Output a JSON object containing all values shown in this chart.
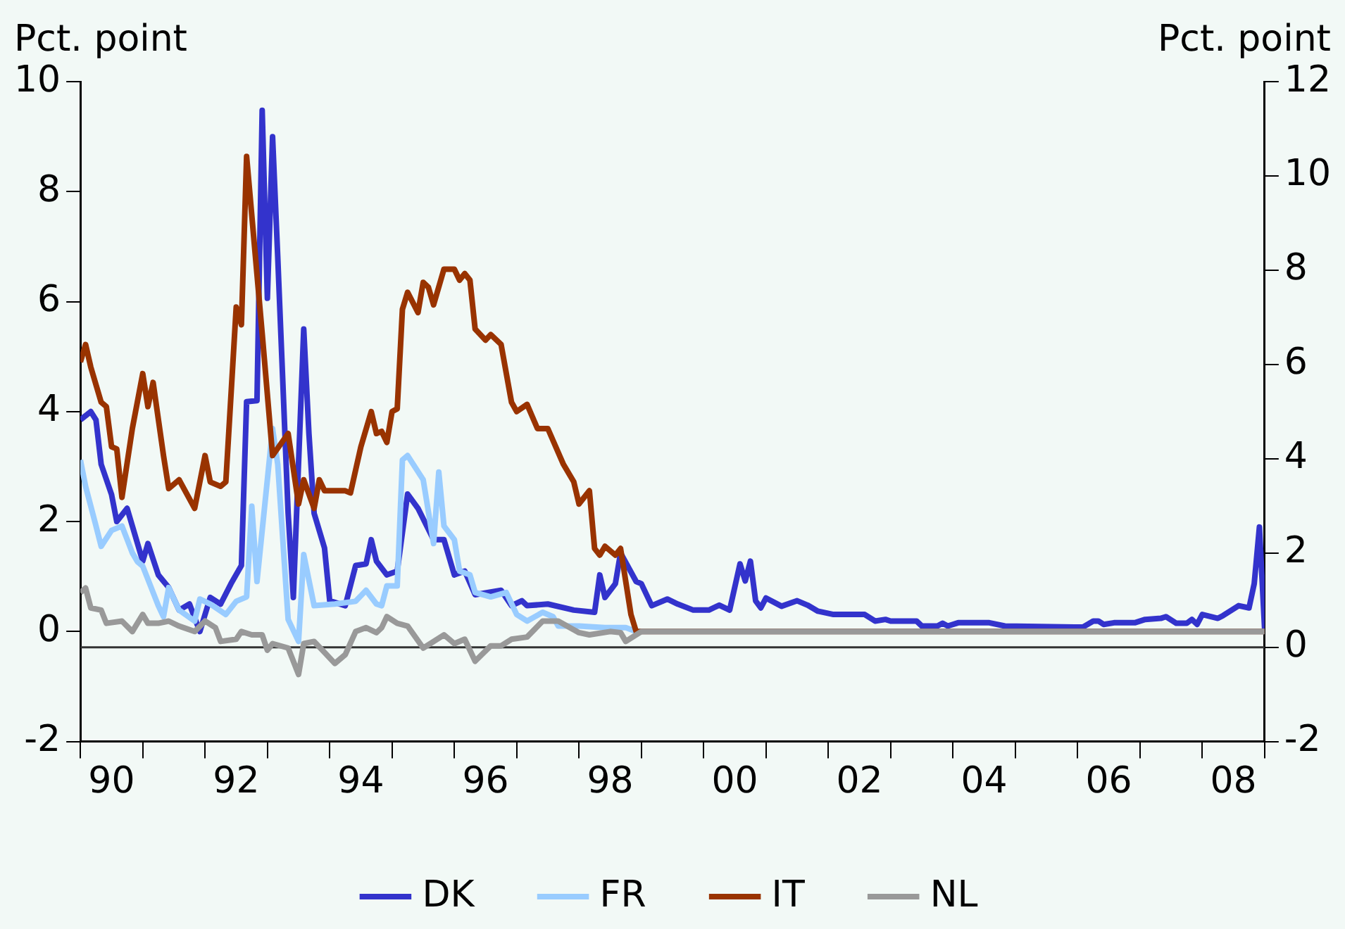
{
  "chart_data": {
    "type": "line",
    "ylabel": "Pct. point",
    "y2label": "Pct. point",
    "legend": "bottom",
    "xlim": [
      "1990-01",
      "2009-01"
    ],
    "xticks": [
      {
        "value": "1990-01",
        "label": null
      },
      {
        "value": "1990-07",
        "label": "90"
      },
      {
        "value": "1991-01",
        "label": null
      },
      {
        "value": "1992-01",
        "label": null
      },
      {
        "value": "1992-07",
        "label": "92"
      },
      {
        "value": "1993-01",
        "label": null
      },
      {
        "value": "1994-01",
        "label": null
      },
      {
        "value": "1994-07",
        "label": "94"
      },
      {
        "value": "1995-01",
        "label": null
      },
      {
        "value": "1996-01",
        "label": null
      },
      {
        "value": "1996-07",
        "label": "96"
      },
      {
        "value": "1997-01",
        "label": null
      },
      {
        "value": "1998-01",
        "label": null
      },
      {
        "value": "1998-07",
        "label": "98"
      },
      {
        "value": "1999-01",
        "label": null
      },
      {
        "value": "2000-01",
        "label": null
      },
      {
        "value": "2000-07",
        "label": "00"
      },
      {
        "value": "2001-01",
        "label": null
      },
      {
        "value": "2002-01",
        "label": null
      },
      {
        "value": "2002-07",
        "label": "02"
      },
      {
        "value": "2003-01",
        "label": null
      },
      {
        "value": "2004-01",
        "label": null
      },
      {
        "value": "2004-07",
        "label": "04"
      },
      {
        "value": "2005-01",
        "label": null
      },
      {
        "value": "2006-01",
        "label": null
      },
      {
        "value": "2006-07",
        "label": "06"
      },
      {
        "value": "2007-01",
        "label": null
      },
      {
        "value": "2008-01",
        "label": null
      },
      {
        "value": "2008-07",
        "label": "08"
      },
      {
        "value": "2009-01",
        "label": null
      }
    ],
    "ylim": [
      -2,
      10
    ],
    "yticks": [
      -2,
      0,
      2,
      4,
      6,
      8,
      10
    ],
    "y2lim": [
      -2,
      12
    ],
    "y2ticks": [
      -2,
      0,
      2,
      4,
      6,
      8,
      10,
      12
    ],
    "ref_lines": [
      {
        "axis": "y2",
        "value": 0,
        "color": "#333333"
      }
    ],
    "series": [
      {
        "name": "DK",
        "color": "#3333cc",
        "x": [
          "1990-01",
          "1990-03",
          "1990-04",
          "1990-05",
          "1990-07",
          "1990-08",
          "1990-10",
          "1990-12",
          "1991-01",
          "1991-02",
          "1991-04",
          "1991-06",
          "1991-08",
          "1991-10",
          "1991-12",
          "1992-02",
          "1992-04",
          "1992-06",
          "1992-08",
          "1992-09",
          "1992-11",
          "1992-12",
          "1993-01",
          "1993-02",
          "1993-03",
          "1993-05",
          "1993-06",
          "1993-08",
          "1993-09",
          "1993-10",
          "1993-12",
          "1994-01",
          "1994-04",
          "1994-06",
          "1994-08",
          "1994-09",
          "1994-10",
          "1994-12",
          "1995-02",
          "1995-04",
          "1995-06",
          "1995-09",
          "1995-11",
          "1996-01",
          "1996-03",
          "1996-05",
          "1996-10",
          "1996-12",
          "1997-02",
          "1997-03",
          "1997-07",
          "1997-12",
          "1998-04",
          "1998-05",
          "1998-06",
          "1998-08",
          "1998-09",
          "1998-12",
          "1999-01",
          "1999-03",
          "1999-06",
          "1999-08",
          "1999-11",
          "2000-02",
          "2000-04",
          "2000-06",
          "2000-08",
          "2000-09",
          "2000-10",
          "2000-11",
          "2000-12",
          "2001-01",
          "2001-04",
          "2001-07",
          "2001-09",
          "2001-11",
          "2002-02",
          "2002-08",
          "2002-10",
          "2002-12",
          "2003-01",
          "2003-06",
          "2003-07",
          "2003-10",
          "2003-11",
          "2003-12",
          "2004-02",
          "2004-08",
          "2004-11",
          "2006-01",
          "2006-02",
          "2006-04",
          "2006-05",
          "2006-06",
          "2006-08",
          "2006-12",
          "2007-02",
          "2007-05",
          "2007-06",
          "2007-08",
          "2007-10",
          "2007-11",
          "2007-12",
          "2008-01",
          "2008-04",
          "2008-05",
          "2008-08",
          "2008-10",
          "2008-11",
          "2008-12",
          "2009-01"
        ],
        "values": [
          3.85,
          4,
          3.85,
          3.04,
          2.49,
          2,
          2.24,
          1.6,
          1.28,
          1.6,
          1.03,
          0.8,
          0.39,
          0.5,
          0,
          0.62,
          0.5,
          0.87,
          1.2,
          4.18,
          4.2,
          9.48,
          6.06,
          9,
          6.8,
          2.15,
          0.62,
          5.5,
          3.6,
          2.15,
          1.52,
          0.56,
          0.47,
          1.2,
          1.23,
          1.67,
          1.28,
          1.03,
          1.1,
          2.5,
          2.24,
          1.67,
          1.67,
          1.03,
          1.1,
          0.67,
          0.75,
          0.47,
          0.56,
          0.47,
          0.5,
          0.39,
          0.35,
          1.03,
          0.62,
          0.87,
          1.43,
          0.91,
          0.87,
          0.47,
          0.59,
          0.5,
          0.39,
          0.39,
          0.48,
          0.39,
          1.23,
          0.92,
          1.28,
          0.56,
          0.43,
          0.61,
          0.46,
          0.56,
          0.48,
          0.37,
          0.31,
          0.31,
          0.19,
          0.22,
          0.19,
          0.19,
          0.1,
          0.1,
          0.15,
          0.1,
          0.16,
          0.16,
          0.1,
          0.08,
          0.08,
          0.19,
          0.19,
          0.13,
          0.16,
          0.16,
          0.22,
          0.24,
          0.27,
          0.15,
          0.15,
          0.22,
          0.13,
          0.31,
          0.24,
          0.29,
          0.47,
          0.43,
          0.87,
          1.9,
          0.05
        ]
      },
      {
        "name": "FR",
        "color": "#99ccff",
        "x": [
          "1990-01",
          "1990-02",
          "1990-04",
          "1990-05",
          "1990-07",
          "1990-09",
          "1990-11",
          "1990-12",
          "1991-01",
          "1991-04",
          "1991-05",
          "1991-06",
          "1991-08",
          "1991-11",
          "1991-12",
          "1992-02",
          "1992-05",
          "1992-07",
          "1992-09",
          "1992-10",
          "1992-11",
          "1993-02",
          "1993-03",
          "1993-05",
          "1993-07",
          "1993-08",
          "1993-10",
          "1994-02",
          "1994-06",
          "1994-08",
          "1994-10",
          "1994-11",
          "1994-12",
          "1995-02",
          "1995-03",
          "1995-04",
          "1995-07",
          "1995-09",
          "1995-10",
          "1995-11",
          "1996-01",
          "1996-02",
          "1996-04",
          "1996-05",
          "1996-08",
          "1996-11",
          "1997-01",
          "1997-03",
          "1997-06",
          "1997-08",
          "1997-09",
          "1998-01",
          "1998-06",
          "1998-10",
          "1998-12",
          "2009-01"
        ],
        "values": [
          3.12,
          2.64,
          1.92,
          1.55,
          1.84,
          1.92,
          1.43,
          1.27,
          1.19,
          0.47,
          0.27,
          0.8,
          0.39,
          0.19,
          0.59,
          0.5,
          0.31,
          0.55,
          0.63,
          2.28,
          0.91,
          3.69,
          3.04,
          0.22,
          -0.18,
          1.4,
          0.47,
          0.5,
          0.55,
          0.75,
          0.5,
          0.47,
          0.83,
          0.83,
          3.12,
          3.2,
          2.76,
          1.6,
          2.9,
          1.92,
          1.67,
          1.1,
          1.03,
          0.71,
          0.63,
          0.71,
          0.31,
          0.19,
          0.35,
          0.27,
          0.1,
          0.1,
          0.07,
          0.07,
          0,
          0
        ]
      },
      {
        "name": "IT",
        "color": "#993300",
        "x": [
          "1990-01",
          "1990-02",
          "1990-03",
          "1990-05",
          "1990-06",
          "1990-07",
          "1990-08",
          "1990-09",
          "1990-11",
          "1991-01",
          "1991-02",
          "1991-03",
          "1991-05",
          "1991-06",
          "1991-08",
          "1991-11",
          "1992-01",
          "1992-02",
          "1992-04",
          "1992-05",
          "1992-07",
          "1992-08",
          "1992-09",
          "1992-12",
          "1993-02",
          "1993-05",
          "1993-07",
          "1993-08",
          "1993-10",
          "1993-11",
          "1993-12",
          "1994-04",
          "1994-05",
          "1994-07",
          "1994-09",
          "1994-10",
          "1994-11",
          "1994-12",
          "1995-01",
          "1995-02",
          "1995-03",
          "1995-04",
          "1995-06",
          "1995-07",
          "1995-08",
          "1995-09",
          "1995-11",
          "1996-01",
          "1996-02",
          "1996-03",
          "1996-04",
          "1996-05",
          "1996-07",
          "1996-08",
          "1996-10",
          "1996-12",
          "1997-01",
          "1997-03",
          "1997-05",
          "1997-07",
          "1997-10",
          "1997-12",
          "1998-01",
          "1998-03",
          "1998-04",
          "1998-05",
          "1998-06",
          "1998-08",
          "1998-09",
          "1998-11",
          "1998-12",
          "2009-01"
        ],
        "values": [
          4.9,
          5.22,
          4.81,
          4.17,
          4.09,
          3.36,
          3.32,
          2.44,
          3.69,
          4.69,
          4.09,
          4.53,
          3.2,
          2.6,
          2.76,
          2.24,
          3.2,
          2.72,
          2.64,
          2.72,
          5.9,
          5.58,
          8.64,
          5.42,
          3.2,
          3.6,
          2.32,
          2.76,
          2.24,
          2.76,
          2.56,
          2.56,
          2.52,
          3.36,
          4,
          3.6,
          3.64,
          3.44,
          4,
          4.05,
          5.86,
          6.17,
          5.8,
          6.35,
          6.26,
          5.94,
          6.59,
          6.59,
          6.39,
          6.51,
          6.39,
          5.5,
          5.3,
          5.4,
          5.22,
          4.17,
          4,
          4.13,
          3.69,
          3.69,
          3.04,
          2.72,
          2.32,
          2.56,
          1.51,
          1.39,
          1.55,
          1.39,
          1.51,
          0.31,
          0,
          0
        ]
      },
      {
        "name": "NL",
        "color": "#999999",
        "x": [
          "1990-01",
          "1990-02",
          "1990-03",
          "1990-05",
          "1990-06",
          "1990-09",
          "1990-11",
          "1991-01",
          "1991-02",
          "1991-04",
          "1991-06",
          "1991-08",
          "1991-11",
          "1992-01",
          "1992-03",
          "1992-04",
          "1992-07",
          "1992-08",
          "1992-10",
          "1992-12",
          "1993-01",
          "1993-02",
          "1993-05",
          "1993-07",
          "1993-08",
          "1993-10",
          "1993-12",
          "1994-02",
          "1994-04",
          "1994-06",
          "1994-08",
          "1994-10",
          "1994-11",
          "1994-12",
          "1995-02",
          "1995-04",
          "1995-07",
          "1995-11",
          "1996-01",
          "1996-03",
          "1996-05",
          "1996-08",
          "1996-10",
          "1996-12",
          "1997-03",
          "1997-06",
          "1997-09",
          "1998-01",
          "1998-03",
          "1998-07",
          "1998-09",
          "1998-10",
          "1999-01",
          "2009-01"
        ],
        "values": [
          0.71,
          0.79,
          0.43,
          0.39,
          0.15,
          0.19,
          0,
          0.31,
          0.15,
          0.15,
          0.19,
          0.1,
          0,
          0.19,
          0.07,
          -0.18,
          -0.14,
          0,
          -0.06,
          -0.06,
          -0.34,
          -0.22,
          -0.3,
          -0.78,
          -0.22,
          -0.18,
          -0.38,
          -0.58,
          -0.42,
          0,
          0.07,
          -0.02,
          0.07,
          0.27,
          0.15,
          0.1,
          -0.3,
          -0.06,
          -0.22,
          -0.14,
          -0.54,
          -0.26,
          -0.26,
          -0.14,
          -0.1,
          0.19,
          0.19,
          -0.02,
          -0.06,
          0,
          -0.02,
          -0.18,
          0,
          0
        ]
      }
    ]
  }
}
